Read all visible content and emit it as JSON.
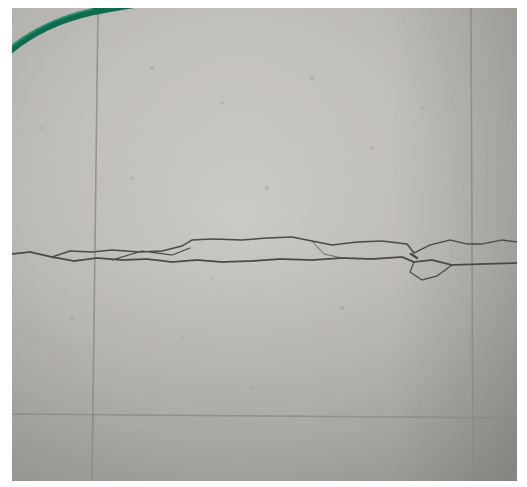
{
  "image": {
    "subject": "concrete-floor-with-crack",
    "colors": {
      "surface_light": "#cfcdc7",
      "surface_mid": "#bab8b1",
      "surface_dark": "#9e9c96",
      "grid_line": "#8a8882",
      "crack": "#4b4944",
      "cable": "#0f6b4f"
    }
  }
}
